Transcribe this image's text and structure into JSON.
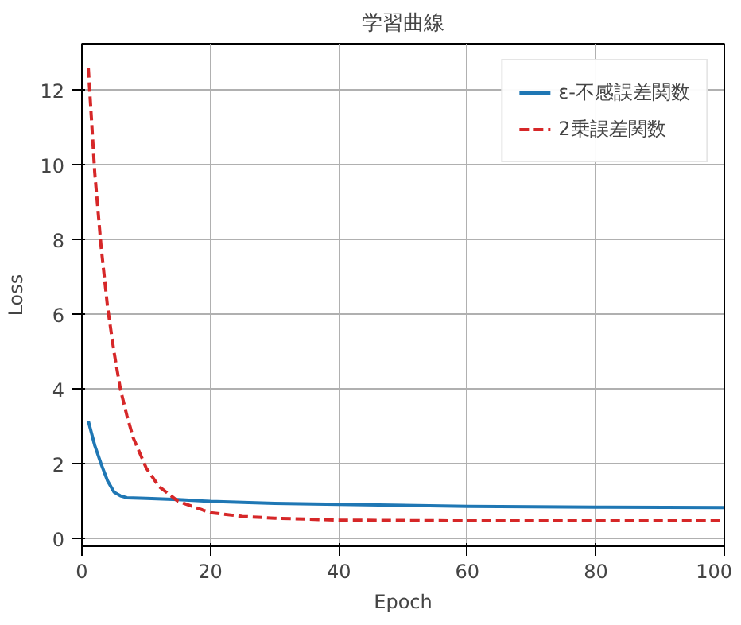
{
  "chart_data": {
    "type": "line",
    "title": "学習曲線",
    "xlabel": "Epoch",
    "ylabel": "Loss",
    "xlim": [
      0,
      100
    ],
    "xticks": [
      0,
      20,
      40,
      60,
      80,
      100
    ],
    "ylim": [
      -0.2,
      13.25
    ],
    "yticks": [
      0,
      2,
      4,
      6,
      8,
      10,
      12
    ],
    "grid": true,
    "legend": "top right",
    "series": [
      {
        "name": "ε-不感誤差関数",
        "color": "#1f77b4",
        "line_style": "solid",
        "x": [
          1,
          2,
          3,
          4,
          5,
          6,
          7,
          10,
          15,
          20,
          30,
          40,
          60,
          80,
          100
        ],
        "values": [
          3.15,
          2.5,
          2.0,
          1.55,
          1.25,
          1.15,
          1.1,
          1.08,
          1.05,
          1.0,
          0.95,
          0.92,
          0.87,
          0.85,
          0.84
        ]
      },
      {
        "name": "2乗誤差関数",
        "color": "#d62728",
        "line_style": "dashed",
        "x": [
          1,
          2,
          3,
          4,
          5,
          6,
          7,
          8,
          10,
          12,
          15,
          20,
          25,
          30,
          40,
          60,
          100
        ],
        "values": [
          12.6,
          9.8,
          7.8,
          6.2,
          5.0,
          4.0,
          3.3,
          2.7,
          1.9,
          1.4,
          1.0,
          0.7,
          0.6,
          0.55,
          0.5,
          0.48,
          0.48
        ]
      }
    ]
  }
}
